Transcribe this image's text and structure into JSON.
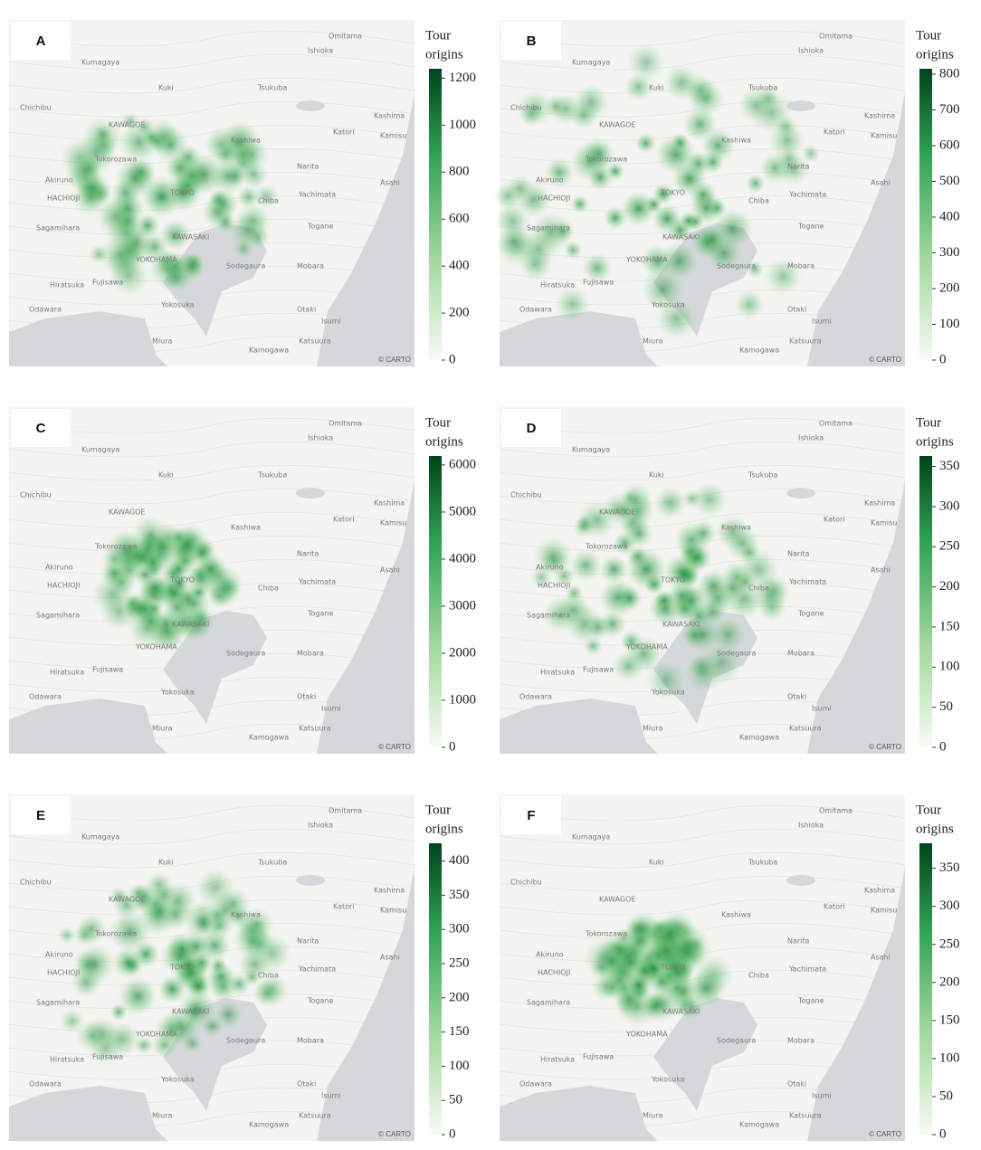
{
  "map_labels": [
    "Kumagaya",
    "Omitama",
    "Ishioka",
    "Kuki",
    "Tsukuba",
    "Chichibu",
    "Kashima",
    "KAWAGOE",
    "Kamisu",
    "Katori",
    "Kashiwa",
    "Tokorozawa",
    "Narita",
    "Akiruno",
    "Asahi",
    "Yachimata",
    "HACHIOJI",
    "TOKYO",
    "Chiba",
    "Sagamihara",
    "Togane",
    "KAWASAKI",
    "YOKOHAMA",
    "Sodegaura",
    "Mobara",
    "Hiratsuka",
    "Fujisawa",
    "Odawara",
    "Yokosuka",
    "Otaki",
    "Isumi",
    "Miura",
    "Kamogawa",
    "Katsuura"
  ],
  "attribution": "© CARTO",
  "panels": [
    {
      "label": "A",
      "colorbar_title": [
        "Tour",
        "origins"
      ],
      "clim": [
        0,
        1240
      ],
      "ticks": [
        0,
        200,
        400,
        600,
        800,
        1000,
        1200
      ]
    },
    {
      "label": "B",
      "colorbar_title": [
        "Tour",
        "origins"
      ],
      "clim": [
        0,
        815
      ],
      "ticks": [
        0,
        100,
        200,
        300,
        400,
        500,
        600,
        700,
        800
      ]
    },
    {
      "label": "C",
      "colorbar_title": [
        "Tour",
        "origins"
      ],
      "clim": [
        0,
        6190
      ],
      "ticks": [
        0,
        1000,
        2000,
        3000,
        4000,
        5000,
        6000
      ]
    },
    {
      "label": "D",
      "colorbar_title": [
        "Tour",
        "origins"
      ],
      "clim": [
        0,
        363
      ],
      "ticks": [
        0,
        50,
        100,
        150,
        200,
        250,
        300,
        350
      ]
    },
    {
      "label": "E",
      "colorbar_title": [
        "Tour",
        "origins"
      ],
      "clim": [
        0,
        426
      ],
      "ticks": [
        0,
        50,
        100,
        150,
        200,
        250,
        300,
        350,
        400
      ]
    },
    {
      "label": "F",
      "colorbar_title": [
        "Tour",
        "origins"
      ],
      "clim": [
        0,
        383
      ],
      "ticks": [
        0,
        50,
        100,
        150,
        200,
        250,
        300,
        350
      ]
    }
  ]
}
